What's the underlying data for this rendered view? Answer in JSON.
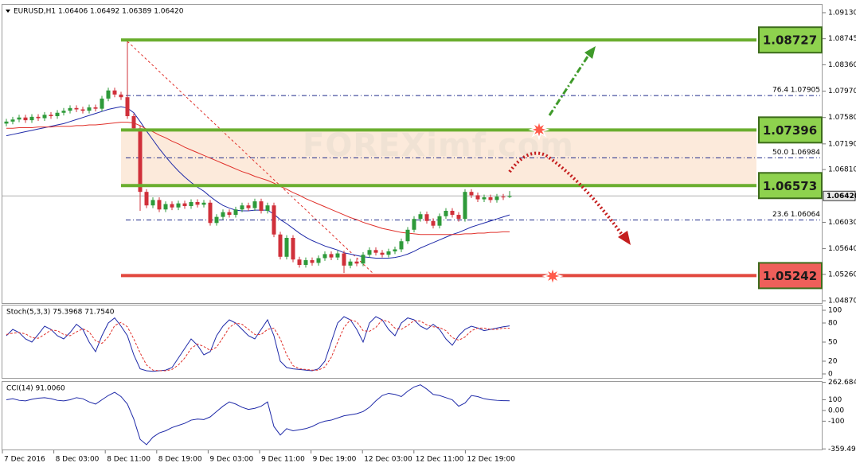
{
  "chart_data": {
    "type": "candlestick",
    "title": "EURUSD,H1  1.06406 1.06492 1.06389 1.06420",
    "watermark": "FOREXimf.com",
    "up_color": "#2e9a3a",
    "down_color": "#d0303a",
    "ylim": [
      1.04835,
      1.09259
    ],
    "yticks": [
      {
        "value": 1.0913,
        "label": "1.09130"
      },
      {
        "value": 1.08745,
        "label": "1.08745"
      },
      {
        "value": 1.0836,
        "label": "1.08360"
      },
      {
        "value": 1.0797,
        "label": "1.07970"
      },
      {
        "value": 1.0758,
        "label": "1.07580"
      },
      {
        "value": 1.0719,
        "label": "1.07190"
      },
      {
        "value": 1.0681,
        "label": "1.06810"
      },
      {
        "value": 1.0603,
        "label": "1.06030"
      },
      {
        "value": 1.0564,
        "label": "1.05640"
      },
      {
        "value": 1.0526,
        "label": "1.05260"
      },
      {
        "value": 1.0487,
        "label": "1.04870"
      }
    ],
    "current_price": {
      "value": 1.0642,
      "label": "1.06420"
    },
    "xlabels": [
      "7 Dec 2016",
      "8 Dec 03:00",
      "8 Dec 11:00",
      "8 Dec 19:00",
      "9 Dec 03:00",
      "9 Dec 11:00",
      "9 Dec 19:00",
      "12 Dec 03:00",
      "12 Dec 11:00",
      "12 Dec 19:00"
    ],
    "levels": [
      {
        "value": 1.08727,
        "label": "1.08727",
        "color": "#6aae2f",
        "box": "#8ed24e"
      },
      {
        "value": 1.07396,
        "label": "1.07396",
        "color": "#6aae2f",
        "box": "#8ed24e"
      },
      {
        "value": 1.06573,
        "label": "1.06573",
        "color": "#6aae2f",
        "box": "#8ed24e"
      },
      {
        "value": 1.05242,
        "label": "1.05242",
        "color": "#e2483e",
        "box": "#ef5f5a"
      }
    ],
    "fib_levels": [
      {
        "ratio": "76.4",
        "value": 1.07905,
        "label": "1.07905"
      },
      {
        "ratio": "50.0",
        "value": 1.06984,
        "label": "1.06984"
      },
      {
        "ratio": "23.6",
        "value": 1.06064,
        "label": "1.06064"
      }
    ],
    "open": [
      1.0749,
      1.0752,
      1.0755,
      1.0758,
      1.0754,
      1.0759,
      1.0757,
      1.0762,
      1.076,
      1.0765,
      1.0768,
      1.0772,
      1.077,
      1.0768,
      1.0773,
      1.0771,
      1.0786,
      1.0798,
      1.0792,
      1.0788,
      1.076,
      1.0742,
      1.0648,
      1.0628,
      1.0636,
      1.0622,
      1.063,
      1.0625,
      1.0631,
      1.0627,
      1.0633,
      1.0629,
      1.0632,
      1.0602,
      1.0611,
      1.0618,
      1.0614,
      1.0622,
      1.0628,
      1.0624,
      1.0634,
      1.062,
      1.0628,
      1.0585,
      1.0552,
      1.058,
      1.0548,
      1.054,
      1.0547,
      1.0543,
      1.055,
      1.0556,
      1.0551,
      1.0557,
      1.0539,
      1.0545,
      1.0542,
      1.0555,
      1.0562,
      1.0558,
      1.0555,
      1.056,
      1.0563,
      1.0575,
      1.0592,
      1.0608,
      1.0615,
      1.0605,
      1.0598,
      1.0612,
      1.062,
      1.0614,
      1.0608,
      1.0648,
      1.0643,
      1.0637,
      1.064,
      1.0636,
      1.0641,
      1.06406
    ],
    "high": [
      1.0756,
      1.0759,
      1.0762,
      1.0762,
      1.0763,
      1.0763,
      1.0766,
      1.0766,
      1.0769,
      1.0772,
      1.0776,
      1.0776,
      1.0774,
      1.0777,
      1.0777,
      1.079,
      1.0802,
      1.0802,
      1.0796,
      1.0873,
      1.0764,
      1.0746,
      1.0652,
      1.064,
      1.064,
      1.0634,
      1.0634,
      1.0635,
      1.0635,
      1.0637,
      1.0637,
      1.0636,
      1.0636,
      1.0615,
      1.0622,
      1.0622,
      1.0626,
      1.0632,
      1.0632,
      1.0638,
      1.0638,
      1.0632,
      1.0632,
      1.0589,
      1.0584,
      1.0584,
      1.0552,
      1.0551,
      1.0551,
      1.0554,
      1.056,
      1.056,
      1.0561,
      1.0561,
      1.0549,
      1.0549,
      1.0559,
      1.0566,
      1.0566,
      1.0562,
      1.0564,
      1.0567,
      1.0579,
      1.0596,
      1.0612,
      1.0619,
      1.0619,
      1.0609,
      1.0616,
      1.0624,
      1.0624,
      1.0618,
      1.0652,
      1.0652,
      1.0647,
      1.0644,
      1.0644,
      1.0645,
      1.0645,
      1.06492
    ],
    "low": [
      1.0745,
      1.0748,
      1.0751,
      1.075,
      1.075,
      1.0753,
      1.0753,
      1.0756,
      1.0756,
      1.0761,
      1.0764,
      1.0766,
      1.0764,
      1.0764,
      1.0767,
      1.0767,
      1.0782,
      1.0788,
      1.0784,
      1.0756,
      1.0738,
      1.062,
      1.0624,
      1.0624,
      1.0618,
      1.0618,
      1.0621,
      1.0621,
      1.0623,
      1.0623,
      1.0625,
      1.0625,
      1.0598,
      1.0598,
      1.0607,
      1.061,
      1.061,
      1.0618,
      1.062,
      1.062,
      1.0616,
      1.0616,
      1.0581,
      1.0548,
      1.0548,
      1.0544,
      1.0536,
      1.0536,
      1.0539,
      1.0539,
      1.0546,
      1.0547,
      1.0547,
      1.0528,
      1.0535,
      1.0538,
      1.0538,
      1.0551,
      1.0554,
      1.0551,
      1.0551,
      1.0556,
      1.0559,
      1.0571,
      1.0588,
      1.0604,
      1.0601,
      1.0594,
      1.0594,
      1.0608,
      1.061,
      1.0604,
      1.0604,
      1.0639,
      1.0633,
      1.0633,
      1.0632,
      1.0632,
      1.0636,
      1.06389
    ],
    "close": [
      1.0752,
      1.0755,
      1.0758,
      1.0754,
      1.0759,
      1.0757,
      1.0762,
      1.076,
      1.0765,
      1.0768,
      1.0772,
      1.077,
      1.0768,
      1.0773,
      1.0771,
      1.0786,
      1.0798,
      1.0792,
      1.0788,
      1.076,
      1.0742,
      1.0648,
      1.0628,
      1.0636,
      1.0622,
      1.063,
      1.0625,
      1.0631,
      1.0627,
      1.0633,
      1.0629,
      1.0632,
      1.0602,
      1.0611,
      1.0618,
      1.0614,
      1.0622,
      1.0628,
      1.0624,
      1.0634,
      1.062,
      1.0628,
      1.0585,
      1.0552,
      1.058,
      1.0548,
      1.054,
      1.0547,
      1.0543,
      1.055,
      1.0556,
      1.0551,
      1.0557,
      1.0539,
      1.0545,
      1.0542,
      1.0555,
      1.0562,
      1.0558,
      1.0555,
      1.056,
      1.0563,
      1.0575,
      1.0592,
      1.0608,
      1.0615,
      1.0605,
      1.0598,
      1.0612,
      1.062,
      1.0614,
      1.0608,
      1.0648,
      1.0643,
      1.0637,
      1.064,
      1.0636,
      1.0641,
      1.064,
      1.0642
    ],
    "moving_averages": [
      {
        "color": "#1f2aa8",
        "values": [
          1.0731,
          1.0733,
          1.0735,
          1.0737,
          1.0739,
          1.0741,
          1.0743,
          1.0745,
          1.0747,
          1.0749,
          1.0752,
          1.0755,
          1.0758,
          1.0761,
          1.0764,
          1.0767,
          1.077,
          1.0772,
          1.0774,
          1.0772,
          1.0765,
          1.0752,
          1.0738,
          1.0725,
          1.0712,
          1.07,
          1.0689,
          1.0679,
          1.067,
          1.0662,
          1.0655,
          1.0649,
          1.0641,
          1.0634,
          1.0628,
          1.0624,
          1.0621,
          1.062,
          1.062,
          1.0621,
          1.0621,
          1.0621,
          1.0615,
          1.0607,
          1.0601,
          1.0594,
          1.0587,
          1.0581,
          1.0576,
          1.0572,
          1.0568,
          1.0565,
          1.0562,
          1.0558,
          1.0556,
          1.0554,
          1.0552,
          1.0551,
          1.055,
          1.055,
          1.055,
          1.0551,
          1.0553,
          1.0556,
          1.056,
          1.0565,
          1.0569,
          1.0573,
          1.0577,
          1.0581,
          1.0585,
          1.0588,
          1.0592,
          1.0596,
          1.0599,
          1.0602,
          1.0605,
          1.0608,
          1.0611,
          1.0614
        ]
      },
      {
        "color": "#e0302a",
        "values": [
          1.0742,
          1.0742,
          1.0743,
          1.0743,
          1.0743,
          1.0744,
          1.0744,
          1.0744,
          1.0745,
          1.0745,
          1.0745,
          1.0746,
          1.0746,
          1.0747,
          1.0747,
          1.0748,
          1.0749,
          1.075,
          1.0751,
          1.0751,
          1.075,
          1.0746,
          1.0741,
          1.0737,
          1.0732,
          1.0728,
          1.0723,
          1.0719,
          1.0714,
          1.071,
          1.0706,
          1.0702,
          1.0698,
          1.0694,
          1.069,
          1.0686,
          1.0682,
          1.0678,
          1.0675,
          1.0671,
          1.0668,
          1.0665,
          1.0661,
          1.0656,
          1.0652,
          1.0647,
          1.0643,
          1.0638,
          1.0634,
          1.063,
          1.0626,
          1.0622,
          1.0618,
          1.0614,
          1.061,
          1.0607,
          1.0603,
          1.06,
          1.0597,
          1.0594,
          1.0592,
          1.059,
          1.0588,
          1.0587,
          1.0586,
          1.0585,
          1.0585,
          1.0585,
          1.0585,
          1.0585,
          1.0585,
          1.0585,
          1.0586,
          1.0586,
          1.0587,
          1.0587,
          1.0588,
          1.0588,
          1.0589,
          1.0589
        ]
      }
    ],
    "stochastic": {
      "title": "Stoch(5,3,3) 75.3968 71.7540",
      "ylim": [
        -6.25,
        108.75
      ],
      "yticks": [
        100,
        80,
        50,
        20,
        0
      ],
      "series": [
        {
          "color": "#1f2aa8",
          "dash": false,
          "values": [
            60,
            70,
            65,
            55,
            50,
            62,
            75,
            70,
            60,
            55,
            65,
            78,
            70,
            50,
            35,
            60,
            80,
            88,
            75,
            60,
            30,
            8,
            5,
            4,
            5,
            6,
            10,
            25,
            40,
            55,
            45,
            30,
            35,
            60,
            75,
            85,
            80,
            70,
            60,
            55,
            70,
            85,
            60,
            20,
            10,
            8,
            7,
            6,
            5,
            8,
            20,
            50,
            80,
            90,
            85,
            70,
            50,
            80,
            90,
            85,
            70,
            60,
            80,
            88,
            85,
            75,
            70,
            78,
            70,
            55,
            45,
            60,
            70,
            75,
            72,
            68,
            70,
            72,
            74,
            75.3968
          ]
        },
        {
          "color": "#e0302a",
          "dash": true,
          "values": [
            62,
            64,
            65,
            63,
            57,
            56,
            62,
            69,
            68,
            62,
            60,
            66,
            71,
            66,
            52,
            48,
            58,
            76,
            81,
            74,
            55,
            33,
            14,
            6,
            5,
            5,
            7,
            14,
            25,
            40,
            47,
            43,
            37,
            42,
            57,
            73,
            80,
            78,
            70,
            62,
            62,
            70,
            72,
            55,
            30,
            13,
            8,
            7,
            6,
            6,
            11,
            26,
            50,
            73,
            85,
            82,
            68,
            67,
            73,
            85,
            82,
            72,
            70,
            76,
            84,
            83,
            77,
            74,
            73,
            68,
            57,
            53,
            58,
            68,
            72,
            72,
            70,
            70,
            72,
            71.754
          ]
        }
      ]
    },
    "cci": {
      "title": "CCI(14) 91.0060",
      "ylim": [
        -365,
        275
      ],
      "yticks": [
        262.6842,
        100,
        {
          "value": 0,
          "label": "0.00"
        },
        -100,
        -359.499
      ],
      "series": [
        {
          "color": "#1f2aa8",
          "dash": false,
          "values": [
            100,
            110,
            95,
            90,
            105,
            115,
            120,
            110,
            95,
            90,
            100,
            120,
            110,
            80,
            60,
            100,
            140,
            170,
            130,
            60,
            -80,
            -270,
            -320,
            -250,
            -210,
            -190,
            -160,
            -140,
            -120,
            -90,
            -80,
            -85,
            -60,
            -10,
            40,
            80,
            60,
            30,
            10,
            20,
            40,
            80,
            -150,
            -230,
            -170,
            -190,
            -180,
            -170,
            -150,
            -120,
            -100,
            -90,
            -70,
            -50,
            -40,
            -30,
            -10,
            30,
            90,
            140,
            160,
            150,
            130,
            180,
            220,
            240,
            200,
            150,
            140,
            120,
            100,
            40,
            70,
            140,
            130,
            110,
            100,
            95,
            92,
            91.006
          ]
        }
      ]
    }
  }
}
